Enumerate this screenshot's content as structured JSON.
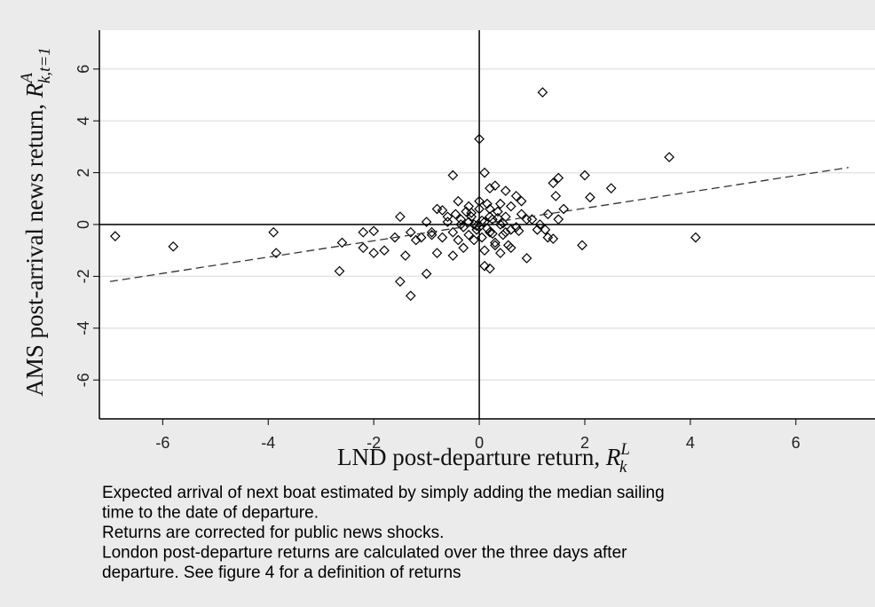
{
  "chart_data": {
    "type": "scatter",
    "xlabel": "LND post-departure return,",
    "xlabel_symbol": "R",
    "xlabel_sup": "L",
    "xlabel_sub": "k",
    "ylabel": "AMS post-arrival news return,",
    "ylabel_symbol": "R",
    "ylabel_sup": "A",
    "ylabel_sub": "k,t=1",
    "xlim": [
      -7.2,
      7.5
    ],
    "ylim": [
      -7.5,
      7.5
    ],
    "xticks": [
      -6,
      -4,
      -2,
      0,
      2,
      4,
      6
    ],
    "yticks": [
      -6,
      -4,
      -2,
      0,
      2,
      4,
      6
    ],
    "grid": true,
    "series": [
      {
        "color": "#000000",
        "x": [
          -6.9,
          -5.8,
          -3.9,
          -3.85,
          -2.6,
          -2.65,
          -2.2,
          -2.2,
          -2.0,
          -2.0,
          -1.8,
          -1.6,
          -1.5,
          -1.5,
          -1.4,
          -1.3,
          -1.3,
          -1.2,
          -1.1,
          -1.0,
          -0.9,
          -0.8,
          -0.8,
          -0.7,
          -0.5,
          -0.5,
          0.0,
          0.1,
          1.2,
          3.6,
          4.1,
          2.0,
          2.5,
          2.1,
          1.95,
          1.5,
          1.45,
          1.4,
          1.5,
          1.3,
          1.3,
          1.4,
          1.1,
          0.9,
          0.8,
          0.7,
          0.5,
          0.3,
          0.2,
          0.1,
          0.2,
          0.4,
          0.6,
          1.0,
          1.6,
          -0.6,
          -0.5,
          -0.45,
          -0.4,
          -0.35,
          -0.3,
          -0.25,
          -0.2,
          -0.15,
          -0.1,
          -0.05,
          0.0,
          0.05,
          0.1,
          0.15,
          0.2,
          0.25,
          0.3,
          0.35,
          0.4,
          0.45,
          0.5,
          0.55,
          0.6,
          0.7,
          0.8,
          0.9,
          -0.7,
          -0.6,
          -0.4,
          -0.3,
          -0.2,
          -0.1,
          0.0,
          0.1,
          0.2,
          0.3,
          0.4,
          0.5,
          0.6,
          -0.2,
          0.0,
          0.2,
          -0.35,
          0.15,
          0.35,
          -0.05,
          0.05,
          0.25,
          -0.15,
          0.45,
          0.75,
          -1.0,
          -0.9,
          1.15,
          1.25
        ],
        "values": [
          -0.45,
          -0.85,
          -0.3,
          -1.1,
          -0.7,
          -1.8,
          -0.3,
          -0.9,
          -0.25,
          -1.1,
          -1.0,
          -0.5,
          0.3,
          -2.2,
          -1.2,
          -0.3,
          -2.75,
          -0.6,
          -0.5,
          -1.9,
          -0.4,
          0.6,
          -1.1,
          0.55,
          1.9,
          -1.2,
          3.3,
          2.0,
          5.1,
          2.6,
          -0.5,
          1.9,
          1.4,
          1.05,
          -0.8,
          1.8,
          1.1,
          1.6,
          0.2,
          0.4,
          -0.5,
          -0.55,
          -0.2,
          -1.3,
          0.9,
          1.1,
          1.3,
          1.5,
          1.4,
          -1.6,
          -1.7,
          -1.1,
          -0.9,
          0.2,
          0.6,
          0.1,
          -0.3,
          0.4,
          -0.6,
          0.2,
          -0.1,
          0.5,
          -0.4,
          0.3,
          0.0,
          -0.2,
          0.6,
          -0.5,
          0.1,
          0.8,
          -0.3,
          0.2,
          -0.7,
          0.5,
          0.0,
          -0.4,
          0.3,
          -0.8,
          0.7,
          -0.1,
          0.4,
          0.2,
          -0.5,
          0.3,
          0.9,
          -0.9,
          0.7,
          -0.6,
          0.9,
          -1.0,
          0.6,
          -0.8,
          0.8,
          -0.3,
          -0.2,
          0.1,
          -0.1,
          0.3,
          0.0,
          -0.15,
          0.25,
          -0.05,
          0.15,
          -0.35,
          0.45,
          0.05,
          -0.25,
          0.1,
          -0.3,
          0.0,
          -0.2
        ]
      }
    ],
    "fit": {
      "x": [
        -7,
        7
      ],
      "values": [
        -2.2,
        2.2
      ]
    },
    "notes": [
      "Expected arrival of next boat estimated by simply adding the median sailing",
      "time to the date of departure.",
      "Returns are corrected for public news shocks.",
      "London post-departure returns are calculated over the three days after",
      "departure. See figure 4 for a definition of returns"
    ]
  }
}
